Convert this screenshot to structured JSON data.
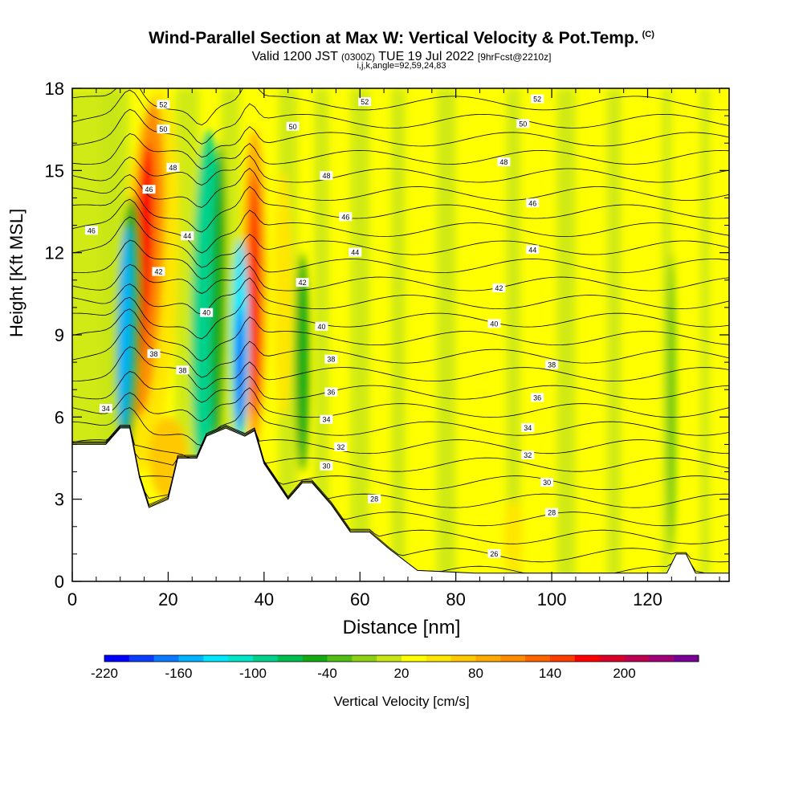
{
  "header": {
    "title": "Wind-Parallel Section at Max W: Vertical Velocity & Pot.Temp.",
    "copyright": "(C)",
    "valid_a": "Valid 1200 JST",
    "valid_zulu": "(0300Z)",
    "valid_b": "TUE 19 Jul 2022",
    "forecast": "[9hrFcst@2210z]",
    "params": "i,j,k,angle=92,59,24,83"
  },
  "chart_data": {
    "type": "heatmap",
    "xlabel": "Distance [nm]",
    "ylabel": "Height [Kft MSL]",
    "xlim": [
      0,
      137
    ],
    "ylim": [
      0,
      18
    ],
    "xticks": [
      0,
      20,
      40,
      60,
      80,
      100,
      120
    ],
    "yticks": [
      0,
      3,
      6,
      9,
      12,
      15,
      18
    ],
    "colorbar": {
      "label": "Vertical Velocity [cm/s]",
      "ticks": [
        -220,
        -160,
        -100,
        -40,
        20,
        80,
        140,
        200
      ],
      "colors": [
        "#0000ff",
        "#0a3cff",
        "#0a78ff",
        "#00b4ff",
        "#00e6ff",
        "#00e6c8",
        "#00d28c",
        "#00be50",
        "#14aa14",
        "#50be14",
        "#8cd214",
        "#c8e614",
        "#ffff00",
        "#ffe600",
        "#ffc800",
        "#ffaa00",
        "#ff8c00",
        "#ff6400",
        "#ff3c00",
        "#ff0000",
        "#dc0028",
        "#be0050",
        "#a00078",
        "#780096"
      ]
    },
    "shading_features": [
      {
        "name": "updraft",
        "x": 14,
        "y_low": 6,
        "y_high": 17.5,
        "w_max_cm_s": 170
      },
      {
        "name": "downdraft",
        "x": 10.5,
        "y_low": 5.5,
        "y_high": 13,
        "w_min_cm_s": -200
      },
      {
        "name": "updraft",
        "x": 38,
        "y_low": 5.5,
        "y_high": 16,
        "w_max_cm_s": 160
      },
      {
        "name": "downdraft",
        "x": 35,
        "y_low": 5.5,
        "y_high": 12,
        "w_min_cm_s": -200
      },
      {
        "name": "downdraft",
        "x": 27,
        "y_low": 4,
        "y_high": 16,
        "w_min_cm_s": -80
      }
    ],
    "terrain_kft": [
      [
        0,
        5
      ],
      [
        7,
        5
      ],
      [
        10,
        5.6
      ],
      [
        12,
        5.6
      ],
      [
        14,
        3.8
      ],
      [
        16,
        2.7
      ],
      [
        20,
        3
      ],
      [
        22,
        4.5
      ],
      [
        26,
        4.5
      ],
      [
        28,
        5.3
      ],
      [
        32,
        5.6
      ],
      [
        36,
        5.3
      ],
      [
        38,
        5.5
      ],
      [
        40,
        4.3
      ],
      [
        45,
        3
      ],
      [
        48,
        3.6
      ],
      [
        50,
        3.6
      ],
      [
        54,
        2.8
      ],
      [
        58,
        1.8
      ],
      [
        62,
        1.8
      ],
      [
        66,
        1.2
      ],
      [
        72,
        0.4
      ],
      [
        84,
        0.3
      ],
      [
        90,
        0.3
      ],
      [
        124,
        0.3
      ],
      [
        126,
        1
      ],
      [
        128,
        1
      ],
      [
        130,
        0.3
      ],
      [
        137,
        0.3
      ]
    ],
    "theta_contour_labels": [
      {
        "text": "52",
        "x": 19,
        "y": 17.4
      },
      {
        "text": "52",
        "x": 61,
        "y": 17.5
      },
      {
        "text": "52",
        "x": 97,
        "y": 17.6
      },
      {
        "text": "50",
        "x": 19,
        "y": 16.5
      },
      {
        "text": "50",
        "x": 46,
        "y": 16.6
      },
      {
        "text": "50",
        "x": 94,
        "y": 16.7
      },
      {
        "text": "48",
        "x": 21,
        "y": 15.1
      },
      {
        "text": "48",
        "x": 53,
        "y": 14.8
      },
      {
        "text": "48",
        "x": 90,
        "y": 15.3
      },
      {
        "text": "46",
        "x": 16,
        "y": 14.3
      },
      {
        "text": "46",
        "x": 57,
        "y": 13.3
      },
      {
        "text": "46",
        "x": 96,
        "y": 13.8
      },
      {
        "text": "46",
        "x": 4,
        "y": 12.8
      },
      {
        "text": "44",
        "x": 24,
        "y": 12.6
      },
      {
        "text": "44",
        "x": 59,
        "y": 12.0
      },
      {
        "text": "44",
        "x": 96,
        "y": 12.1
      },
      {
        "text": "42",
        "x": 18,
        "y": 11.3
      },
      {
        "text": "42",
        "x": 48,
        "y": 10.9
      },
      {
        "text": "42",
        "x": 89,
        "y": 10.7
      },
      {
        "text": "40",
        "x": 28,
        "y": 9.8
      },
      {
        "text": "40",
        "x": 52,
        "y": 9.3
      },
      {
        "text": "40",
        "x": 88,
        "y": 9.4
      },
      {
        "text": "38",
        "x": 17,
        "y": 8.3
      },
      {
        "text": "38",
        "x": 54,
        "y": 8.1
      },
      {
        "text": "38",
        "x": 100,
        "y": 7.9
      },
      {
        "text": "38",
        "x": 23,
        "y": 7.7
      },
      {
        "text": "36",
        "x": 54,
        "y": 6.9
      },
      {
        "text": "36",
        "x": 97,
        "y": 6.7
      },
      {
        "text": "34",
        "x": 7,
        "y": 6.3
      },
      {
        "text": "34",
        "x": 53,
        "y": 5.9
      },
      {
        "text": "34",
        "x": 95,
        "y": 5.6
      },
      {
        "text": "32",
        "x": 56,
        "y": 4.9
      },
      {
        "text": "32",
        "x": 95,
        "y": 4.6
      },
      {
        "text": "30",
        "x": 53,
        "y": 4.2
      },
      {
        "text": "30",
        "x": 99,
        "y": 3.6
      },
      {
        "text": "28",
        "x": 63,
        "y": 3
      },
      {
        "text": "28",
        "x": 100,
        "y": 2.5
      },
      {
        "text": "26",
        "x": 88,
        "y": 1
      }
    ]
  }
}
